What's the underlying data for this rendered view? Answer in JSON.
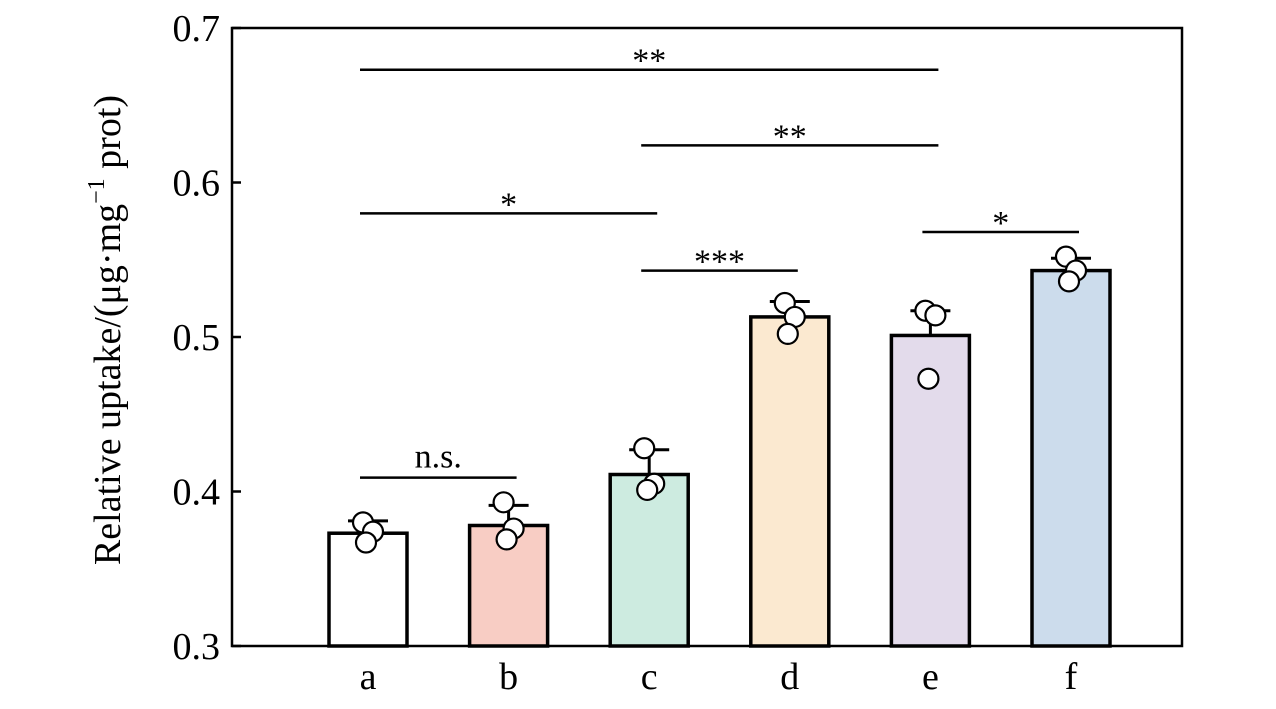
{
  "chart_data": {
    "type": "bar",
    "categories": [
      "a",
      "b",
      "c",
      "d",
      "e",
      "f"
    ],
    "values": [
      0.373,
      0.378,
      0.411,
      0.513,
      0.501,
      0.543
    ],
    "errors": [
      0.008,
      0.013,
      0.016,
      0.01,
      0.016,
      0.008
    ],
    "points": [
      [
        0.38,
        0.374,
        0.367
      ],
      [
        0.393,
        0.376,
        0.369
      ],
      [
        0.428,
        0.405,
        0.401
      ],
      [
        0.522,
        0.513,
        0.502
      ],
      [
        0.517,
        0.514,
        0.473
      ],
      [
        0.552,
        0.543,
        0.536
      ]
    ],
    "bar_colors": [
      "#ffffff",
      "#f8cdc4",
      "#cdebe0",
      "#fbe9d0",
      "#e3dbeb",
      "#ccdcec"
    ],
    "ylabel_prefix": "Relative uptake/(μg·mg",
    "ylabel_sup": "−1",
    "ylabel_suffix": " prot)",
    "xlabel": "",
    "ylim": [
      0.3,
      0.7
    ],
    "yticks": [
      "0.3",
      "0.4",
      "0.5",
      "0.6",
      "0.7"
    ],
    "grid": false,
    "significance": [
      {
        "from": "a",
        "to": "e",
        "y": 0.673,
        "label": "**"
      },
      {
        "from": "c",
        "to": "e",
        "y": 0.624,
        "label": "**"
      },
      {
        "from": "a",
        "to": "c",
        "y": 0.58,
        "label": "*"
      },
      {
        "from": "e",
        "to": "f",
        "y": 0.568,
        "label": "*"
      },
      {
        "from": "c",
        "to": "d",
        "y": 0.543,
        "label": "***"
      },
      {
        "from": "a",
        "to": "b",
        "y": 0.409,
        "label": "n.s."
      }
    ]
  }
}
